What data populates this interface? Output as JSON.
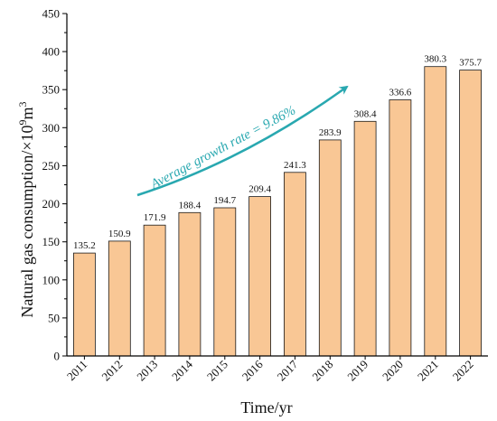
{
  "chart_data": {
    "type": "bar",
    "categories": [
      "2011",
      "2012",
      "2013",
      "2014",
      "2015",
      "2016",
      "2017",
      "2018",
      "2019",
      "2020",
      "2021",
      "2022"
    ],
    "values": [
      135.2,
      150.9,
      171.9,
      188.4,
      194.7,
      209.4,
      241.3,
      283.9,
      308.4,
      336.6,
      380.3,
      375.7
    ],
    "value_labels": [
      "135.2",
      "150.9",
      "171.9",
      "188.4",
      "194.7",
      "209.4",
      "241.3",
      "283.9",
      "308.4",
      "336.6",
      "380.3",
      "375.7"
    ],
    "xlabel": "Time/yr",
    "ylabel_main": "Natural gas consumption/×10",
    "ylabel_exp": "9",
    "ylabel_unit": "m",
    "ylabel_unit_exp": "3",
    "ylim": [
      0,
      450
    ],
    "yticks": [
      "0",
      "50",
      "100",
      "150",
      "200",
      "250",
      "300",
      "350",
      "400",
      "450"
    ],
    "annotation": "Average growth rate = 9.86%",
    "colors": {
      "bar_fill": "#f9c795",
      "bar_stroke": "#1a1a1a",
      "annotation": "#29a8b0",
      "axis": "#000000"
    }
  }
}
